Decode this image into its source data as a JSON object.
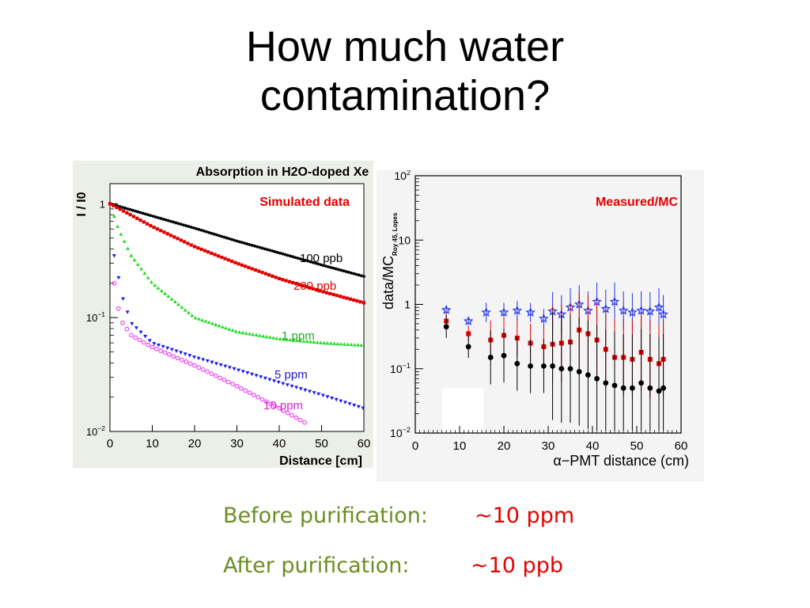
{
  "slide": {
    "title_line1": "How much water",
    "title_line2": "contamination?"
  },
  "footer": {
    "before_label": "Before purification:",
    "before_value": "~10 ppm",
    "after_label": "After purification:",
    "after_value": "~10 ppb"
  },
  "chart_data": [
    {
      "type": "scatter",
      "title": "Absorption in H2O-doped Xe",
      "annotation": "Simulated data",
      "xlabel": "Distance [cm]",
      "ylabel": "I / I0",
      "xlim": [
        0,
        60
      ],
      "ylim": [
        0.01,
        1.5
      ],
      "yscale": "log",
      "x_ticks": [
        "0",
        "10",
        "20",
        "30",
        "40",
        "50",
        "60"
      ],
      "y_ticks": [
        "10^-2",
        "10^-1",
        "1"
      ],
      "colors": {
        "100 ppb": "#000000",
        "200 ppb": "#e00000",
        "1 ppm": "#22dd22",
        "5 ppm": "#1a1aee",
        "10 ppm": "#ee22ee"
      },
      "series": [
        {
          "name": "100 ppb",
          "model": "exp_decay",
          "x": [
            0,
            10,
            20,
            30,
            40,
            50,
            60
          ],
          "y": [
            1.0,
            0.78,
            0.61,
            0.47,
            0.37,
            0.29,
            0.23
          ]
        },
        {
          "name": "200 ppb",
          "model": "exp_decay",
          "x": [
            0,
            10,
            20,
            30,
            40,
            50,
            60
          ],
          "y": [
            1.0,
            0.63,
            0.42,
            0.3,
            0.22,
            0.17,
            0.135
          ]
        },
        {
          "name": "1 ppm",
          "model": "decay_plateau",
          "x": [
            0,
            2,
            5,
            10,
            20,
            30,
            40,
            50,
            60
          ],
          "y": [
            1.0,
            0.6,
            0.35,
            0.2,
            0.1,
            0.075,
            0.065,
            0.06,
            0.057
          ]
        },
        {
          "name": "5 ppm",
          "model": "decay_plateau",
          "x": [
            1,
            3,
            5,
            10,
            20,
            30,
            40,
            50,
            60
          ],
          "y": [
            0.35,
            0.15,
            0.09,
            0.06,
            0.045,
            0.035,
            0.027,
            0.021,
            0.016
          ]
        },
        {
          "name": "10 ppm",
          "model": "decay_plateau",
          "x": [
            1,
            2,
            3,
            5,
            10,
            20,
            30,
            40,
            46
          ],
          "y": [
            0.2,
            0.12,
            0.09,
            0.07,
            0.055,
            0.038,
            0.025,
            0.016,
            0.012
          ]
        }
      ]
    },
    {
      "type": "scatter",
      "annotation": "Measured/MC",
      "xlabel": "α−PMT distance (cm)",
      "ylabel": "data/MC",
      "ylabel_subscript": "Roy 45, Lopes",
      "xlim": [
        0,
        60
      ],
      "ylim": [
        0.01,
        100
      ],
      "yscale": "log",
      "x_ticks": [
        "0",
        "10",
        "20",
        "30",
        "40",
        "50",
        "60"
      ],
      "y_ticks": [
        "10^-2",
        "10^-1",
        "1",
        "10",
        "10^2"
      ],
      "colors": {
        "blue": "#2233ee",
        "red": "#e00000",
        "black": "#000000"
      },
      "series": [
        {
          "marker": "star",
          "color": "blue",
          "x": [
            7,
            12,
            16,
            20,
            23,
            26,
            29,
            31,
            33,
            35,
            37,
            39,
            41,
            43,
            45,
            47,
            49,
            51,
            53,
            55,
            56
          ],
          "y": [
            0.82,
            0.55,
            0.75,
            0.75,
            0.8,
            0.75,
            0.6,
            0.78,
            0.7,
            0.9,
            1.0,
            0.8,
            1.1,
            0.85,
            1.1,
            0.8,
            0.75,
            0.8,
            0.78,
            0.9,
            0.7
          ]
        },
        {
          "marker": "square",
          "color": "red",
          "x": [
            7,
            12,
            17,
            20,
            23,
            26,
            29,
            31,
            33,
            35,
            37,
            39,
            41,
            43,
            45,
            47,
            49,
            51,
            53,
            55,
            56
          ],
          "y": [
            0.55,
            0.35,
            0.28,
            0.33,
            0.3,
            0.25,
            0.22,
            0.24,
            0.25,
            0.26,
            0.4,
            0.35,
            0.28,
            0.2,
            0.15,
            0.15,
            0.14,
            0.18,
            0.14,
            0.12,
            0.14
          ]
        },
        {
          "marker": "circle",
          "color": "black",
          "x": [
            7,
            12,
            17,
            20,
            23,
            26,
            29,
            31,
            33,
            35,
            37,
            39,
            41,
            43,
            45,
            47,
            49,
            51,
            53,
            55,
            56
          ],
          "y": [
            0.45,
            0.22,
            0.15,
            0.16,
            0.12,
            0.11,
            0.11,
            0.11,
            0.1,
            0.1,
            0.09,
            0.08,
            0.07,
            0.06,
            0.055,
            0.05,
            0.05,
            0.06,
            0.05,
            0.045,
            0.05
          ]
        }
      ]
    }
  ]
}
